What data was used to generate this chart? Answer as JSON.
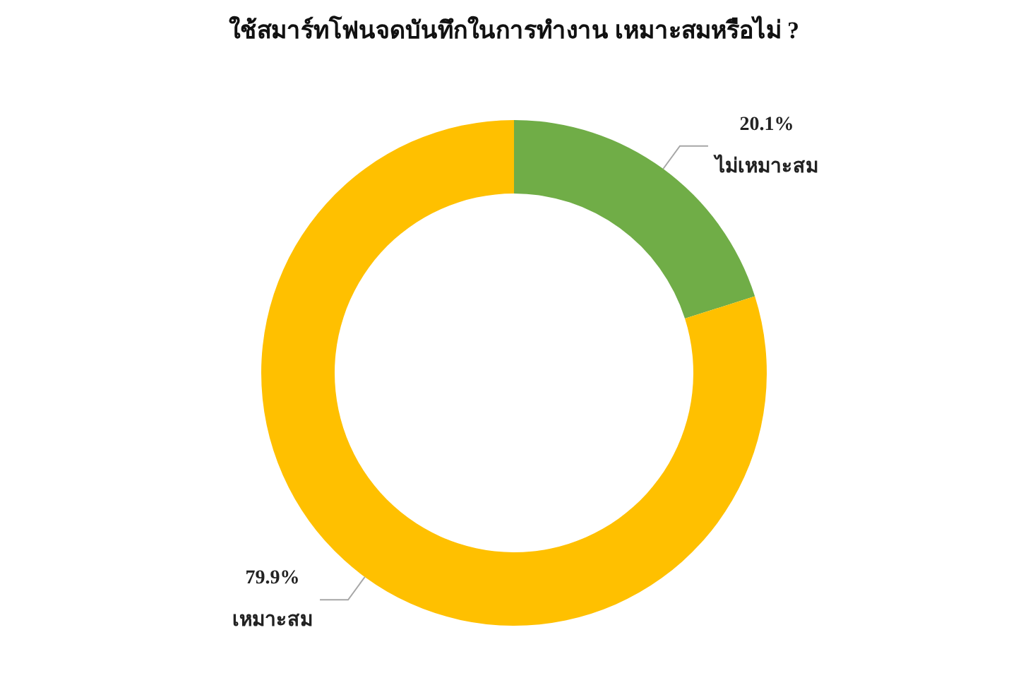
{
  "chart_data": {
    "type": "donut",
    "title": "ใช้สมาร์ทโฟนจดบันทึกในการทำงาน เหมาะสมหรือไม่ ?",
    "categories": [
      "ไม่เหมาะสม",
      "เหมาะสม"
    ],
    "values": [
      20.1,
      79.9
    ],
    "colors": [
      "#70ad47",
      "#ffc000"
    ],
    "value_labels": [
      "20.1%",
      "79.9%"
    ],
    "legend": false
  }
}
